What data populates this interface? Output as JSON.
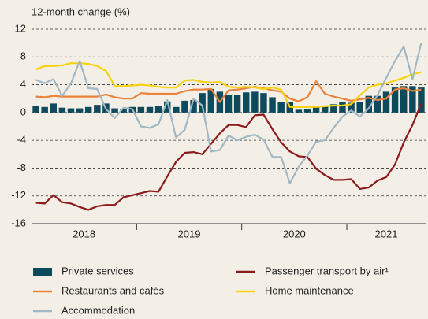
{
  "chart_data": {
    "type": "bar",
    "y_label": "12-month change (%)",
    "x_labels": [
      "2018",
      "2019",
      "2020",
      "2021"
    ],
    "ylim": [
      -16,
      12
    ],
    "yticks": [
      12,
      8,
      4,
      0,
      -4,
      -8,
      -12,
      -16
    ],
    "grid": true,
    "series": [
      {
        "name": "Private services",
        "type": "bar",
        "color": "#0d4a5c",
        "values": [
          1.0,
          0.8,
          1.3,
          0.7,
          0.6,
          0.6,
          0.8,
          1.1,
          1.3,
          0.6,
          0.5,
          0.8,
          0.8,
          0.8,
          0.9,
          1.6,
          0.8,
          1.7,
          1.8,
          2.8,
          3.4,
          3.0,
          2.6,
          2.5,
          2.9,
          3.0,
          2.8,
          2.2,
          1.5,
          1.5,
          0.4,
          0.5,
          0.9,
          1.0,
          1.2,
          1.5,
          1.4,
          1.5,
          2.4,
          2.4,
          3.0,
          3.6,
          3.8,
          3.8,
          3.6
        ]
      },
      {
        "name": "Passenger transport by air¹",
        "type": "line",
        "color": "#8c1c1c",
        "values": [
          -13.0,
          -13.1,
          -11.9,
          -12.9,
          -13.1,
          -13.6,
          -14.0,
          -13.5,
          -13.3,
          -13.3,
          -12.2,
          -11.9,
          -11.6,
          -11.3,
          -11.4,
          -9.2,
          -7.1,
          -5.8,
          -5.7,
          -6.0,
          -4.5,
          -3.0,
          -1.8,
          -1.8,
          -2.1,
          -0.4,
          -0.3,
          -2.4,
          -4.3,
          -5.6,
          -6.3,
          -6.4,
          -8.1,
          -9.0,
          -9.7,
          -9.7,
          -9.6,
          -11.0,
          -10.8,
          -9.8,
          -9.3,
          -7.5,
          -4.3,
          -1.8,
          1.3
        ]
      },
      {
        "name": "Restaurants and cafés",
        "type": "line",
        "color": "#ea8239",
        "values": [
          2.3,
          2.2,
          2.4,
          2.3,
          2.3,
          2.3,
          2.3,
          2.3,
          2.6,
          2.2,
          2.0,
          2.0,
          2.8,
          2.7,
          2.7,
          2.7,
          2.7,
          3.1,
          3.3,
          3.3,
          3.4,
          1.5,
          3.2,
          3.3,
          3.5,
          3.7,
          3.5,
          3.2,
          3.0,
          2.0,
          1.6,
          2.2,
          4.5,
          2.7,
          2.3,
          2.0,
          1.7,
          1.9,
          2.1,
          1.8,
          2.0,
          3.3,
          3.5,
          3.1,
          3.3
        ]
      },
      {
        "name": "Home maintenance",
        "type": "line",
        "color": "#f6d30c",
        "values": [
          6.2,
          6.7,
          6.7,
          6.8,
          7.1,
          7.1,
          7.0,
          6.7,
          6.0,
          3.8,
          3.8,
          3.9,
          4.0,
          3.9,
          3.7,
          3.6,
          3.6,
          4.6,
          4.7,
          4.4,
          4.3,
          4.4,
          3.7,
          3.6,
          3.7,
          3.6,
          3.4,
          3.6,
          3.3,
          0.8,
          0.8,
          0.8,
          0.8,
          0.9,
          1.0,
          1.0,
          1.2,
          2.5,
          3.6,
          4.0,
          4.2,
          4.6,
          5.0,
          5.5,
          5.8
        ]
      },
      {
        "name": "Accommodation",
        "type": "line",
        "color": "#a2b8c4",
        "values": [
          4.7,
          4.2,
          4.8,
          2.4,
          4.2,
          7.4,
          3.5,
          3.4,
          0.5,
          -0.8,
          0.7,
          0.5,
          -2.0,
          -2.2,
          -1.7,
          1.8,
          -3.6,
          -2.5,
          2.0,
          1.0,
          -5.6,
          -5.4,
          -3.3,
          -4.0,
          -3.5,
          -3.2,
          -3.9,
          -6.4,
          -6.4,
          -10.2,
          -7.8,
          -6.2,
          -4.2,
          -4.0,
          -2.2,
          -0.6,
          0.3,
          -0.6,
          0.6,
          2.5,
          5.0,
          7.4,
          9.5,
          4.8,
          10.0
        ]
      }
    ]
  }
}
